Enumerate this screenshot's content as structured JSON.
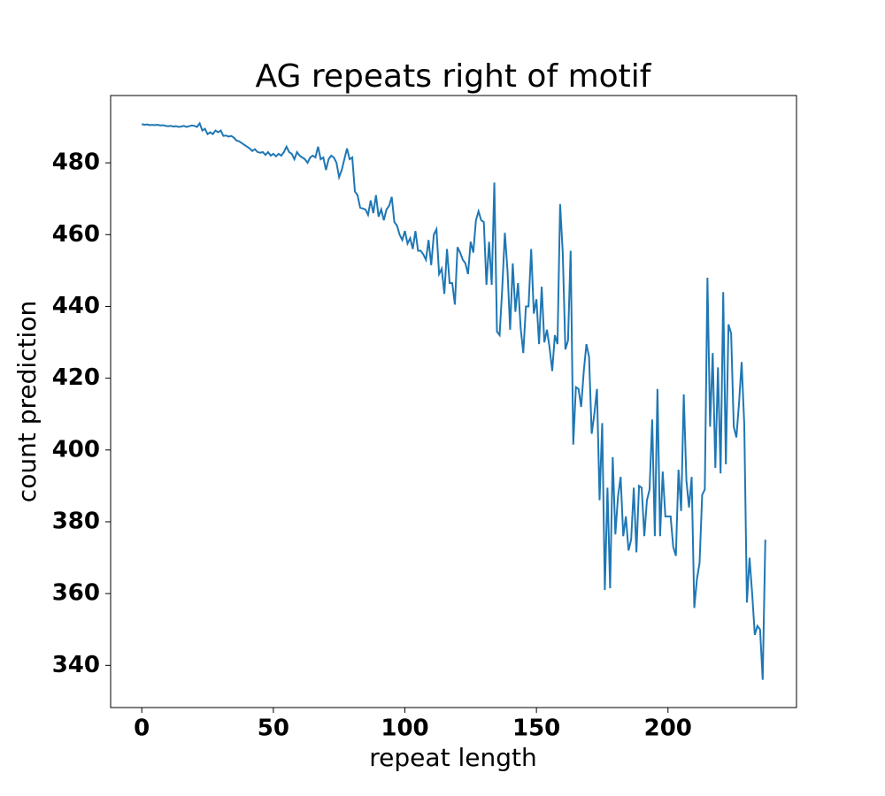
{
  "chart_data": {
    "type": "line",
    "title": "AG repeats right of motif",
    "xlabel": "repeat length",
    "ylabel": "count prediction",
    "xlim": [
      -11.85,
      248.85
    ],
    "ylim": [
      328.25,
      498.75
    ],
    "xticks": [
      0,
      50,
      100,
      150,
      200
    ],
    "yticks": [
      340,
      360,
      380,
      400,
      420,
      440,
      460,
      480
    ],
    "series": [
      {
        "name": "count prediction",
        "color": "#1f77b4",
        "values": [
          490.8,
          490.6,
          490.7,
          490.5,
          490.6,
          490.5,
          490.6,
          490.4,
          490.5,
          490.3,
          490.2,
          490.3,
          490.1,
          490.2,
          490.0,
          490.1,
          490.3,
          490.0,
          490.2,
          490.4,
          490.3,
          490.0,
          491.0,
          489.0,
          489.5,
          488.0,
          488.5,
          488.0,
          489.0,
          488.5,
          489.0,
          487.5,
          487.6,
          487.3,
          487.5,
          487.0,
          486.2,
          486.0,
          485.5,
          485.0,
          484.5,
          484.0,
          483.3,
          483.8,
          483.0,
          482.8,
          483.0,
          482.2,
          483.0,
          482.0,
          482.5,
          481.8,
          482.5,
          482.0,
          483.0,
          484.5,
          483.0,
          482.5,
          481.0,
          483.0,
          482.0,
          481.5,
          481.0,
          480.0,
          481.5,
          482.0,
          481.5,
          484.5,
          481.0,
          481.5,
          478.0,
          481.0,
          482.0,
          481.5,
          480.0,
          476.0,
          478.0,
          481.0,
          484.0,
          481.0,
          481.5,
          472.0,
          471.0,
          467.5,
          467.3,
          467.0,
          465.5,
          469.5,
          466.0,
          471.0,
          465.0,
          467.0,
          464.0,
          467.0,
          468.0,
          470.5,
          463.5,
          462.5,
          460.0,
          458.5,
          461.0,
          457.5,
          459.0,
          456.0,
          461.0,
          455.5,
          455.5,
          454.5,
          453.0,
          458.5,
          451.5,
          460.0,
          461.5,
          449.0,
          450.5,
          443.5,
          456.0,
          446.5,
          446.5,
          440.5,
          456.5,
          455.0,
          453.0,
          452.0,
          449.0,
          458.0,
          455.0,
          464.0,
          466.5,
          464.0,
          463.5,
          446.0,
          458.0,
          446.0,
          474.5,
          433.0,
          432.0,
          445.0,
          460.5,
          450.0,
          433.5,
          452.0,
          438.5,
          446.5,
          434.0,
          427.0,
          440.0,
          440.0,
          456.0,
          438.0,
          442.0,
          429.5,
          445.5,
          430.0,
          433.5,
          428.5,
          422.0,
          432.0,
          429.5,
          468.5,
          455.0,
          428.0,
          430.5,
          455.5,
          401.5,
          417.5,
          417.0,
          412.0,
          422.0,
          429.5,
          426.0,
          404.5,
          410.0,
          417.0,
          386.0,
          407.5,
          361.0,
          389.5,
          361.5,
          398.0,
          376.5,
          387.0,
          392.5,
          376.0,
          381.5,
          372.0,
          375.0,
          389.5,
          371.5,
          390.0,
          389.5,
          376.0,
          386.0,
          389.0,
          408.5,
          376.0,
          417.0,
          376.0,
          394.0,
          381.5,
          381.5,
          381.5,
          373.0,
          370.5,
          394.5,
          383.0,
          415.5,
          391.5,
          384.0,
          392.5,
          356.0,
          364.0,
          368.5,
          387.5,
          389.0,
          448.0,
          406.5,
          427.0,
          395.0,
          423.0,
          393.5,
          444.0,
          396.0,
          435.0,
          432.5,
          406.5,
          403.5,
          413.0,
          424.5,
          407.0,
          357.5,
          370.0,
          360.0,
          348.5,
          351.0,
          350.0,
          336.0,
          375.0
        ]
      }
    ]
  }
}
